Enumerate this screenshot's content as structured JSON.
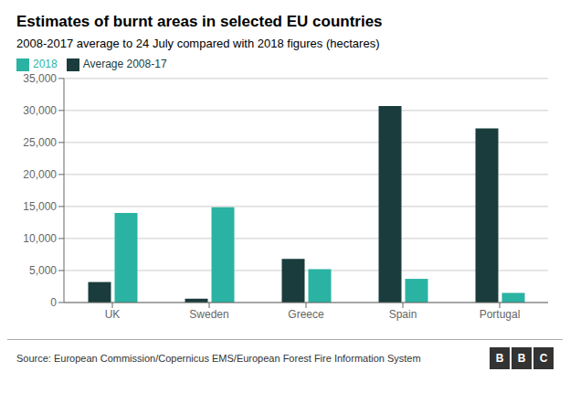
{
  "chart_data": {
    "type": "bar",
    "title": "Estimates of burnt areas in selected EU countries",
    "subtitle": "2008-2017 average to 24 July compared with 2018 figures (hectares)",
    "categories": [
      "UK",
      "Sweden",
      "Greece",
      "Spain",
      "Portugal"
    ],
    "series": [
      {
        "name": "Average 2008-17",
        "color": "#1a3c3c",
        "values": [
          3200,
          600,
          6800,
          30700,
          27200
        ]
      },
      {
        "name": "2018",
        "color": "#2ab3a3",
        "values": [
          14000,
          14900,
          5200,
          3700,
          1500
        ]
      }
    ],
    "ylim": [
      0,
      35000
    ],
    "yticks": [
      0,
      {
        "value": 5000,
        "label": "5,000"
      },
      {
        "value": 10000,
        "label": "10,000"
      },
      {
        "value": 15000,
        "label": "15,000"
      },
      {
        "value": 20000,
        "label": "20,000"
      },
      {
        "value": 25000,
        "label": "25,000"
      },
      {
        "value": 30000,
        "label": "30,000"
      },
      {
        "value": 35000,
        "label": "35,000"
      }
    ],
    "grid": true,
    "legend": "upper left",
    "source": "Source: European Commission/Copernicus EMS/European Forest Fire Information System",
    "annotations": [
      "BBC"
    ]
  }
}
